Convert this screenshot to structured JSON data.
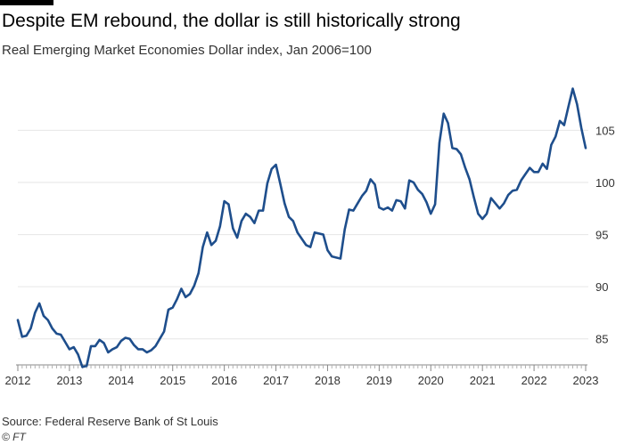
{
  "chart_data": {
    "type": "line",
    "title": "Despite EM rebound, the dollar is still historically strong",
    "subtitle": "Real Emerging Market Economies Dollar index, Jan 2006=100",
    "xlabel": "",
    "ylabel": "",
    "x_ticks": [
      "2012",
      "2013",
      "2014",
      "2015",
      "2016",
      "2017",
      "2018",
      "2019",
      "2020",
      "2021",
      "2022",
      "2023"
    ],
    "y_ticks": [
      85,
      90,
      95,
      100,
      105
    ],
    "xlim": [
      2012.0,
      2023.0
    ],
    "ylim": [
      82.5,
      110.5
    ],
    "grid": "horizontal",
    "series": [
      {
        "color": "#1e4e8c",
        "x": [
          2012.0,
          2012.083,
          2012.167,
          2012.25,
          2012.333,
          2012.417,
          2012.5,
          2012.583,
          2012.667,
          2012.75,
          2012.833,
          2012.917,
          2013.0,
          2013.083,
          2013.167,
          2013.25,
          2013.333,
          2013.417,
          2013.5,
          2013.583,
          2013.667,
          2013.75,
          2013.833,
          2013.917,
          2014.0,
          2014.083,
          2014.167,
          2014.25,
          2014.333,
          2014.417,
          2014.5,
          2014.583,
          2014.667,
          2014.75,
          2014.833,
          2014.917,
          2015.0,
          2015.083,
          2015.167,
          2015.25,
          2015.333,
          2015.417,
          2015.5,
          2015.583,
          2015.667,
          2015.75,
          2015.833,
          2015.917,
          2016.0,
          2016.083,
          2016.167,
          2016.25,
          2016.333,
          2016.417,
          2016.5,
          2016.583,
          2016.667,
          2016.75,
          2016.833,
          2016.917,
          2017.0,
          2017.083,
          2017.167,
          2017.25,
          2017.333,
          2017.417,
          2017.5,
          2017.583,
          2017.667,
          2017.75,
          2017.833,
          2017.917,
          2018.0,
          2018.083,
          2018.167,
          2018.25,
          2018.333,
          2018.417,
          2018.5,
          2018.583,
          2018.667,
          2018.75,
          2018.833,
          2018.917,
          2019.0,
          2019.083,
          2019.167,
          2019.25,
          2019.333,
          2019.417,
          2019.5,
          2019.583,
          2019.667,
          2019.75,
          2019.833,
          2019.917,
          2020.0,
          2020.083,
          2020.167,
          2020.25,
          2020.333,
          2020.417,
          2020.5,
          2020.583,
          2020.667,
          2020.75,
          2020.833,
          2020.917,
          2021.0,
          2021.083,
          2021.167,
          2021.25,
          2021.333,
          2021.417,
          2021.5,
          2021.583,
          2021.667,
          2021.75,
          2021.833,
          2021.917,
          2022.0,
          2022.083,
          2022.167,
          2022.25,
          2022.333,
          2022.417,
          2022.5,
          2022.583,
          2022.667,
          2022.75,
          2022.833,
          2022.917,
          2023.0
        ],
        "values": [
          86.8,
          85.2,
          85.3,
          86.0,
          87.5,
          88.4,
          87.2,
          86.8,
          86.0,
          85.5,
          85.4,
          84.7,
          84.0,
          84.2,
          83.5,
          82.3,
          82.4,
          84.3,
          84.3,
          84.9,
          84.6,
          83.7,
          84.0,
          84.2,
          84.8,
          85.1,
          85.0,
          84.4,
          84.0,
          84.0,
          83.7,
          83.9,
          84.3,
          85.0,
          85.7,
          87.8,
          88.0,
          88.8,
          89.8,
          89.0,
          89.3,
          90.1,
          91.3,
          93.8,
          95.2,
          94.0,
          94.4,
          95.8,
          98.2,
          97.9,
          95.6,
          94.7,
          96.3,
          97.0,
          96.7,
          96.1,
          97.3,
          97.3,
          99.9,
          101.3,
          101.7,
          99.9,
          98.0,
          96.7,
          96.3,
          95.2,
          94.6,
          94.0,
          93.8,
          95.2,
          95.1,
          95.0,
          93.5,
          92.9,
          92.8,
          92.7,
          95.5,
          97.4,
          97.3,
          98.0,
          98.7,
          99.2,
          100.3,
          99.8,
          97.6,
          97.4,
          97.6,
          97.3,
          98.3,
          98.2,
          97.5,
          100.2,
          100.0,
          99.3,
          98.9,
          98.1,
          97.0,
          97.9,
          103.8,
          106.6,
          105.7,
          103.3,
          103.2,
          102.7,
          101.4,
          100.3,
          98.6,
          97.0,
          96.5,
          97.0,
          98.5,
          98.0,
          97.5,
          98.0,
          98.8,
          99.2,
          99.3,
          100.2,
          100.8,
          101.4,
          101.0,
          101.0,
          101.8,
          101.3,
          103.6,
          104.4,
          105.9,
          105.5,
          107.3,
          109.0,
          107.5,
          105.2,
          103.3
        ]
      }
    ]
  },
  "source": "Source: Federal Reserve Bank of St Louis",
  "credit": "© FT",
  "colors": {
    "line": "#1e4e8c",
    "grid": "#e6e6e6",
    "axis": "#888888",
    "text": "#333333"
  }
}
